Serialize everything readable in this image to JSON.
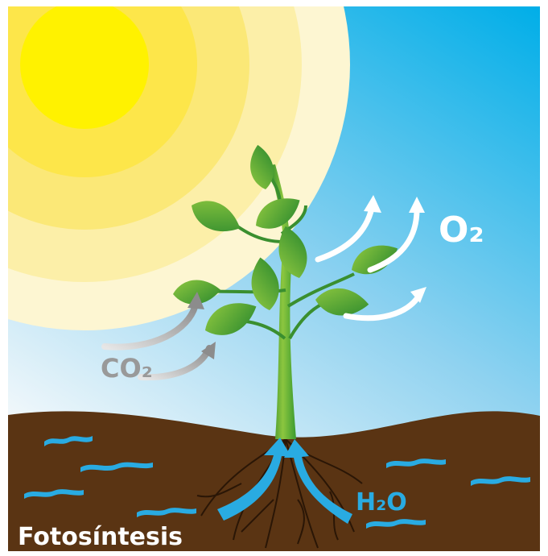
{
  "labels": {
    "o2": "O₂",
    "co2": "CO₂",
    "h2o": "H₂O"
  },
  "title": "Fotosíntesis"
}
